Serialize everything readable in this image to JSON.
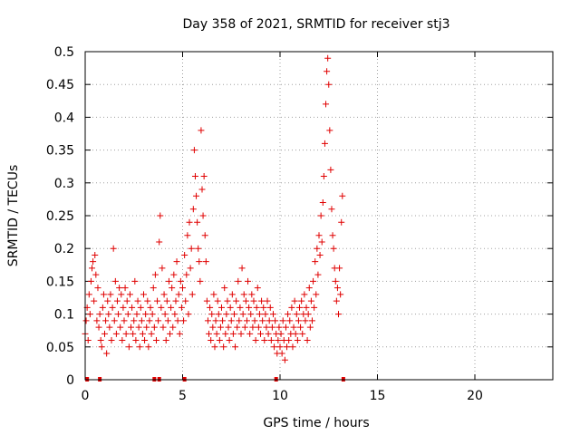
{
  "chart_data": {
    "type": "scatter",
    "title": "Day 358 of 2021, SRMTID for receiver stj3",
    "xlabel": "GPS time / hours",
    "ylabel": "SRMTID / TECUs",
    "xlim": [
      0,
      24
    ],
    "ylim": [
      0,
      0.5
    ],
    "x_ticks": [
      0,
      5,
      10,
      15,
      20
    ],
    "y_ticks": [
      0,
      0.05,
      0.1,
      0.15,
      0.2,
      0.25,
      0.3,
      0.35,
      0.4,
      0.45,
      0.5
    ],
    "x_tick_labels": [
      "0",
      "5",
      "10",
      "15",
      "20"
    ],
    "y_tick_labels": [
      "0",
      "0.05",
      "0.1",
      "0.15",
      "0.2",
      "0.25",
      "0.3",
      "0.35",
      "0.4",
      "0.45",
      "0.5"
    ],
    "grid": true,
    "marker": "+",
    "color": "#e00000",
    "series": [
      {
        "name": "SRMTID",
        "points": [
          [
            0.0,
            0.07
          ],
          [
            0.05,
            0.09
          ],
          [
            0.1,
            0.11
          ],
          [
            0.15,
            0.06
          ],
          [
            0.2,
            0.13
          ],
          [
            0.25,
            0.1
          ],
          [
            0.3,
            0.15
          ],
          [
            0.35,
            0.17
          ],
          [
            0.4,
            0.18
          ],
          [
            0.45,
            0.12
          ],
          [
            0.5,
            0.19
          ],
          [
            0.55,
            0.16
          ],
          [
            0.6,
            0.09
          ],
          [
            0.65,
            0.14
          ],
          [
            0.7,
            0.08
          ],
          [
            0.75,
            0.1
          ],
          [
            0.8,
            0.06
          ],
          [
            0.85,
            0.05
          ],
          [
            0.9,
            0.11
          ],
          [
            0.95,
            0.13
          ],
          [
            1.0,
            0.07
          ],
          [
            1.05,
            0.09
          ],
          [
            1.1,
            0.04
          ],
          [
            1.15,
            0.12
          ],
          [
            1.2,
            0.1
          ],
          [
            1.25,
            0.08
          ],
          [
            1.3,
            0.13
          ],
          [
            1.35,
            0.06
          ],
          [
            1.4,
            0.11
          ],
          [
            1.45,
            0.2
          ],
          [
            1.5,
            0.09
          ],
          [
            1.55,
            0.15
          ],
          [
            1.6,
            0.07
          ],
          [
            1.65,
            0.12
          ],
          [
            1.7,
            0.1
          ],
          [
            1.75,
            0.14
          ],
          [
            1.8,
            0.08
          ],
          [
            1.85,
            0.13
          ],
          [
            1.9,
            0.06
          ],
          [
            1.95,
            0.11
          ],
          [
            2.0,
            0.09
          ],
          [
            2.05,
            0.14
          ],
          [
            2.1,
            0.07
          ],
          [
            2.15,
            0.12
          ],
          [
            2.2,
            0.1
          ],
          [
            2.25,
            0.05
          ],
          [
            2.3,
            0.13
          ],
          [
            2.35,
            0.08
          ],
          [
            2.4,
            0.11
          ],
          [
            2.45,
            0.07
          ],
          [
            2.5,
            0.09
          ],
          [
            2.55,
            0.15
          ],
          [
            2.6,
            0.06
          ],
          [
            2.65,
            0.1
          ],
          [
            2.7,
            0.12
          ],
          [
            2.75,
            0.08
          ],
          [
            2.8,
            0.05
          ],
          [
            2.85,
            0.11
          ],
          [
            2.9,
            0.09
          ],
          [
            2.95,
            0.07
          ],
          [
            3.0,
            0.13
          ],
          [
            3.05,
            0.06
          ],
          [
            3.1,
            0.1
          ],
          [
            3.15,
            0.08
          ],
          [
            3.2,
            0.12
          ],
          [
            3.25,
            0.05
          ],
          [
            3.3,
            0.09
          ],
          [
            3.35,
            0.11
          ],
          [
            3.4,
            0.07
          ],
          [
            3.45,
            0.1
          ],
          [
            3.5,
            0.14
          ],
          [
            3.55,
            0.08
          ],
          [
            3.6,
            0.16
          ],
          [
            3.65,
            0.06
          ],
          [
            3.7,
            0.12
          ],
          [
            3.75,
            0.09
          ],
          [
            3.8,
            0.21
          ],
          [
            3.85,
            0.25
          ],
          [
            3.9,
            0.11
          ],
          [
            3.95,
            0.17
          ],
          [
            4.0,
            0.08
          ],
          [
            4.05,
            0.13
          ],
          [
            4.1,
            0.1
          ],
          [
            4.15,
            0.06
          ],
          [
            4.2,
            0.12
          ],
          [
            4.25,
            0.09
          ],
          [
            4.3,
            0.15
          ],
          [
            4.35,
            0.07
          ],
          [
            4.4,
            0.11
          ],
          [
            4.45,
            0.14
          ],
          [
            4.5,
            0.08
          ],
          [
            4.55,
            0.16
          ],
          [
            4.6,
            0.1
          ],
          [
            4.65,
            0.12
          ],
          [
            4.7,
            0.18
          ],
          [
            4.75,
            0.09
          ],
          [
            4.8,
            0.13
          ],
          [
            4.85,
            0.07
          ],
          [
            4.9,
            0.15
          ],
          [
            4.95,
            0.11
          ],
          [
            5.0,
            0.14
          ],
          [
            5.05,
            0.09
          ],
          [
            5.1,
            0.19
          ],
          [
            5.15,
            0.12
          ],
          [
            5.2,
            0.16
          ],
          [
            5.25,
            0.22
          ],
          [
            5.3,
            0.1
          ],
          [
            5.35,
            0.24
          ],
          [
            5.4,
            0.17
          ],
          [
            5.45,
            0.2
          ],
          [
            5.5,
            0.13
          ],
          [
            5.55,
            0.26
          ],
          [
            5.6,
            0.35
          ],
          [
            5.65,
            0.31
          ],
          [
            5.7,
            0.28
          ],
          [
            5.75,
            0.24
          ],
          [
            5.8,
            0.2
          ],
          [
            5.85,
            0.18
          ],
          [
            5.9,
            0.15
          ],
          [
            5.95,
            0.38
          ],
          [
            6.0,
            0.29
          ],
          [
            6.05,
            0.25
          ],
          [
            6.1,
            0.31
          ],
          [
            6.15,
            0.22
          ],
          [
            6.2,
            0.18
          ],
          [
            6.25,
            0.12
          ],
          [
            6.3,
            0.09
          ],
          [
            6.35,
            0.07
          ],
          [
            6.4,
            0.11
          ],
          [
            6.45,
            0.06
          ],
          [
            6.5,
            0.1
          ],
          [
            6.55,
            0.08
          ],
          [
            6.6,
            0.13
          ],
          [
            6.65,
            0.05
          ],
          [
            6.7,
            0.09
          ],
          [
            6.75,
            0.07
          ],
          [
            6.8,
            0.12
          ],
          [
            6.85,
            0.1
          ],
          [
            6.9,
            0.06
          ],
          [
            6.95,
            0.08
          ],
          [
            7.0,
            0.11
          ],
          [
            7.05,
            0.09
          ],
          [
            7.1,
            0.05
          ],
          [
            7.15,
            0.14
          ],
          [
            7.2,
            0.07
          ],
          [
            7.25,
            0.1
          ],
          [
            7.3,
            0.12
          ],
          [
            7.35,
            0.08
          ],
          [
            7.4,
            0.06
          ],
          [
            7.45,
            0.11
          ],
          [
            7.5,
            0.09
          ],
          [
            7.55,
            0.13
          ],
          [
            7.6,
            0.07
          ],
          [
            7.65,
            0.1
          ],
          [
            7.7,
            0.05
          ],
          [
            7.75,
            0.12
          ],
          [
            7.8,
            0.08
          ],
          [
            7.85,
            0.15
          ],
          [
            7.9,
            0.09
          ],
          [
            7.95,
            0.11
          ],
          [
            8.0,
            0.07
          ],
          [
            8.05,
            0.17
          ],
          [
            8.1,
            0.1
          ],
          [
            8.15,
            0.13
          ],
          [
            8.2,
            0.08
          ],
          [
            8.25,
            0.12
          ],
          [
            8.3,
            0.09
          ],
          [
            8.35,
            0.15
          ],
          [
            8.4,
            0.11
          ],
          [
            8.45,
            0.07
          ],
          [
            8.5,
            0.1
          ],
          [
            8.55,
            0.13
          ],
          [
            8.6,
            0.08
          ],
          [
            8.65,
            0.12
          ],
          [
            8.7,
            0.09
          ],
          [
            8.75,
            0.06
          ],
          [
            8.8,
            0.11
          ],
          [
            8.85,
            0.14
          ],
          [
            8.9,
            0.08
          ],
          [
            8.95,
            0.1
          ],
          [
            9.0,
            0.07
          ],
          [
            9.05,
            0.12
          ],
          [
            9.1,
            0.09
          ],
          [
            9.15,
            0.11
          ],
          [
            9.2,
            0.06
          ],
          [
            9.25,
            0.1
          ],
          [
            9.3,
            0.08
          ],
          [
            9.35,
            0.12
          ],
          [
            9.4,
            0.07
          ],
          [
            9.45,
            0.09
          ],
          [
            9.5,
            0.11
          ],
          [
            9.55,
            0.06
          ],
          [
            9.6,
            0.08
          ],
          [
            9.65,
            0.1
          ],
          [
            9.7,
            0.05
          ],
          [
            9.75,
            0.09
          ],
          [
            9.8,
            0.07
          ],
          [
            9.85,
            0.04
          ],
          [
            9.9,
            0.06
          ],
          [
            9.95,
            0.08
          ],
          [
            10.0,
            0.05
          ],
          [
            10.05,
            0.07
          ],
          [
            10.1,
            0.04
          ],
          [
            10.15,
            0.09
          ],
          [
            10.2,
            0.06
          ],
          [
            10.25,
            0.03
          ],
          [
            10.3,
            0.08
          ],
          [
            10.35,
            0.05
          ],
          [
            10.4,
            0.1
          ],
          [
            10.45,
            0.06
          ],
          [
            10.5,
            0.09
          ],
          [
            10.55,
            0.07
          ],
          [
            10.6,
            0.11
          ],
          [
            10.65,
            0.05
          ],
          [
            10.7,
            0.08
          ],
          [
            10.75,
            0.12
          ],
          [
            10.8,
            0.07
          ],
          [
            10.85,
            0.1
          ],
          [
            10.9,
            0.06
          ],
          [
            10.95,
            0.09
          ],
          [
            11.0,
            0.11
          ],
          [
            11.05,
            0.08
          ],
          [
            11.1,
            0.12
          ],
          [
            11.15,
            0.07
          ],
          [
            11.2,
            0.1
          ],
          [
            11.25,
            0.13
          ],
          [
            11.3,
            0.09
          ],
          [
            11.35,
            0.11
          ],
          [
            11.4,
            0.06
          ],
          [
            11.45,
            0.1
          ],
          [
            11.5,
            0.14
          ],
          [
            11.55,
            0.08
          ],
          [
            11.6,
            0.12
          ],
          [
            11.65,
            0.09
          ],
          [
            11.7,
            0.15
          ],
          [
            11.75,
            0.11
          ],
          [
            11.8,
            0.18
          ],
          [
            11.85,
            0.13
          ],
          [
            11.9,
            0.2
          ],
          [
            11.95,
            0.16
          ],
          [
            12.0,
            0.22
          ],
          [
            12.05,
            0.19
          ],
          [
            12.1,
            0.25
          ],
          [
            12.15,
            0.21
          ],
          [
            12.2,
            0.27
          ],
          [
            12.25,
            0.31
          ],
          [
            12.3,
            0.36
          ],
          [
            12.35,
            0.42
          ],
          [
            12.4,
            0.47
          ],
          [
            12.45,
            0.49
          ],
          [
            12.5,
            0.45
          ],
          [
            12.55,
            0.38
          ],
          [
            12.6,
            0.32
          ],
          [
            12.65,
            0.26
          ],
          [
            12.7,
            0.22
          ],
          [
            12.75,
            0.2
          ],
          [
            12.8,
            0.17
          ],
          [
            12.85,
            0.15
          ],
          [
            12.9,
            0.12
          ],
          [
            12.95,
            0.14
          ],
          [
            13.0,
            0.1
          ],
          [
            13.05,
            0.17
          ],
          [
            13.1,
            0.13
          ],
          [
            13.15,
            0.24
          ],
          [
            13.2,
            0.28
          ]
        ]
      }
    ],
    "bottom_markers_x": [
      0.1,
      0.75,
      3.55,
      3.8,
      5.1,
      9.8,
      13.25
    ]
  }
}
